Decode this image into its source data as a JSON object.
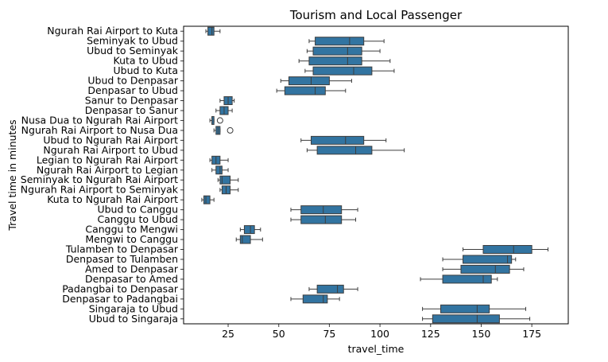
{
  "chart_data": {
    "type": "boxplot",
    "orientation": "horizontal",
    "title": "Tourism and Local Passenger",
    "xlabel": "travel_time",
    "ylabel": "Travel time in minutes",
    "xlim": [
      3,
      193
    ],
    "xticks": [
      25,
      50,
      75,
      100,
      125,
      150,
      175
    ],
    "grid": false,
    "box_color": "#3274a1",
    "line_color": "#3d3d3d",
    "categories": [
      "Ngurah Rai Airport to Kuta",
      "Seminyak to Ubud",
      "Ubud to Seminyak",
      "Kuta to Ubud",
      "Ubud to Kuta",
      "Ubud to Denpasar",
      "Denpasar to Ubud",
      "Sanur to Denpasar",
      "Denpasar to Sanur",
      "Nusa Dua to Ngurah Rai Airport",
      "Ngurah Rai Airport to Nusa Dua",
      "Ubud to Ngurah Rai Airport",
      "Ngurah Rai Airport to Ubud",
      "Legian to Ngurah Rai Airport",
      "Ngurah Rai Airport to Legian",
      "Seminyak to Ngurah Rai Airport",
      "Ngurah Rai Airport to Seminyak",
      "Kuta to Ngurah Rai Airport",
      "Ubud to Canggu",
      "Canggu to Ubud",
      "Canggu to Mengwi",
      "Mengwi to Canggu",
      "Tulamben to Denpasar",
      "Denpasar to Tulamben",
      "Amed to Denpasar",
      "Denpasar to Amed",
      "Padangbai to Denpasar",
      "Denpasar to Padangbai",
      "Singaraja to Ubud",
      "Ubud to Singaraja"
    ],
    "boxes": [
      {
        "whislo": 14,
        "q1": 15,
        "med": 17,
        "q3": 18,
        "whishi": 21,
        "fliers": []
      },
      {
        "whislo": 65,
        "q1": 68,
        "med": 85,
        "q3": 92,
        "whishi": 102,
        "fliers": []
      },
      {
        "whislo": 64,
        "q1": 67,
        "med": 84,
        "q3": 91,
        "whishi": 100,
        "fliers": []
      },
      {
        "whislo": 60,
        "q1": 65,
        "med": 84,
        "q3": 91,
        "whishi": 105,
        "fliers": []
      },
      {
        "whislo": 63,
        "q1": 67,
        "med": 87,
        "q3": 96,
        "whishi": 107,
        "fliers": []
      },
      {
        "whislo": 51,
        "q1": 55,
        "med": 66,
        "q3": 75,
        "whishi": 86,
        "fliers": []
      },
      {
        "whislo": 49,
        "q1": 53,
        "med": 68,
        "q3": 73,
        "whishi": 83,
        "fliers": []
      },
      {
        "whislo": 21,
        "q1": 23,
        "med": 25,
        "q3": 27,
        "whishi": 28,
        "fliers": []
      },
      {
        "whislo": 19,
        "q1": 21,
        "med": 23,
        "q3": 25,
        "whishi": 27,
        "fliers": []
      },
      {
        "whislo": 16,
        "q1": 17,
        "med": 17,
        "q3": 18,
        "whishi": 18,
        "fliers": [
          21
        ]
      },
      {
        "whislo": 18,
        "q1": 19,
        "med": 20,
        "q3": 21,
        "whishi": 21,
        "fliers": [
          26
        ]
      },
      {
        "whislo": 61,
        "q1": 66,
        "med": 83,
        "q3": 92,
        "whishi": 103,
        "fliers": []
      },
      {
        "whislo": 64,
        "q1": 69,
        "med": 88,
        "q3": 96,
        "whishi": 112,
        "fliers": []
      },
      {
        "whislo": 16,
        "q1": 17,
        "med": 19,
        "q3": 21,
        "whishi": 25,
        "fliers": []
      },
      {
        "whislo": 17,
        "q1": 19,
        "med": 21,
        "q3": 22,
        "whishi": 25,
        "fliers": []
      },
      {
        "whislo": 20,
        "q1": 21,
        "med": 22,
        "q3": 26,
        "whishi": 30,
        "fliers": []
      },
      {
        "whislo": 21,
        "q1": 22,
        "med": 24,
        "q3": 26,
        "whishi": 30,
        "fliers": []
      },
      {
        "whislo": 12,
        "q1": 13,
        "med": 14,
        "q3": 16,
        "whishi": 18,
        "fliers": []
      },
      {
        "whislo": 56,
        "q1": 61,
        "med": 72,
        "q3": 81,
        "whishi": 89,
        "fliers": []
      },
      {
        "whislo": 56,
        "q1": 61,
        "med": 73,
        "q3": 81,
        "whishi": 88,
        "fliers": []
      },
      {
        "whislo": 31,
        "q1": 33,
        "med": 36,
        "q3": 38,
        "whishi": 41,
        "fliers": []
      },
      {
        "whislo": 29,
        "q1": 31,
        "med": 32,
        "q3": 36,
        "whishi": 42,
        "fliers": []
      },
      {
        "whislo": 141,
        "q1": 151,
        "med": 166,
        "q3": 175,
        "whishi": 183,
        "fliers": []
      },
      {
        "whislo": 131,
        "q1": 141,
        "med": 163,
        "q3": 165,
        "whishi": 167,
        "fliers": []
      },
      {
        "whislo": 131,
        "q1": 140,
        "med": 157,
        "q3": 164,
        "whishi": 171,
        "fliers": []
      },
      {
        "whislo": 120,
        "q1": 131,
        "med": 151,
        "q3": 155,
        "whishi": 158,
        "fliers": []
      },
      {
        "whislo": 65,
        "q1": 69,
        "med": 79,
        "q3": 82,
        "whishi": 89,
        "fliers": []
      },
      {
        "whislo": 56,
        "q1": 62,
        "med": 72,
        "q3": 74,
        "whishi": 80,
        "fliers": []
      },
      {
        "whislo": 121,
        "q1": 130,
        "med": 148,
        "q3": 154,
        "whishi": 172,
        "fliers": []
      },
      {
        "whislo": 121,
        "q1": 126,
        "med": 148,
        "q3": 159,
        "whishi": 174,
        "fliers": []
      }
    ]
  }
}
